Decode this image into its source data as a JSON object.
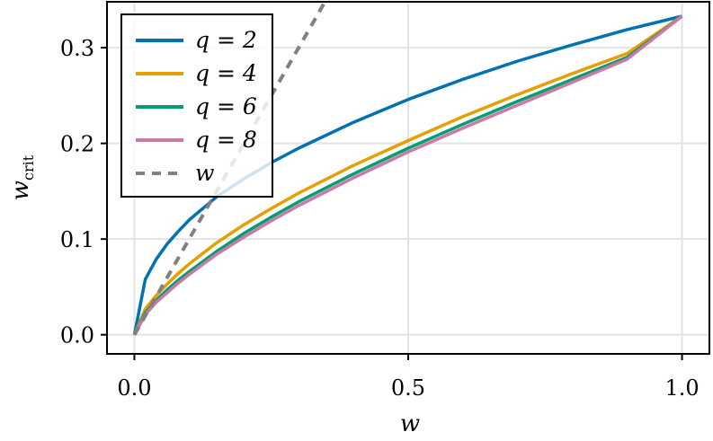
{
  "chart_data": {
    "type": "line",
    "title": "",
    "xlabel": "w",
    "ylabel_main": "w",
    "ylabel_sub": "crit",
    "xlim": [
      -0.05,
      1.05
    ],
    "ylim": [
      -0.02,
      0.348
    ],
    "xticks": [
      0.0,
      0.5,
      1.0
    ],
    "xtick_labels": [
      "0.0",
      "0.5",
      "1.0"
    ],
    "yticks": [
      0.0,
      0.1,
      0.2,
      0.3
    ],
    "ytick_labels": [
      "0.0",
      "0.1",
      "0.2",
      "0.3"
    ],
    "grid": true,
    "legend_position": "top-left",
    "series": [
      {
        "name": "q = 2",
        "color": "#0072B2",
        "dash": "solid",
        "x": [
          0,
          0.02,
          0.04,
          0.06,
          0.08,
          0.1,
          0.15,
          0.2,
          0.25,
          0.3,
          0.4,
          0.5,
          0.6,
          0.7,
          0.8,
          0.9,
          1.0
        ],
        "y": [
          0,
          0.058,
          0.079,
          0.095,
          0.108,
          0.12,
          0.144,
          0.163,
          0.18,
          0.195,
          0.222,
          0.246,
          0.267,
          0.286,
          0.303,
          0.319,
          0.333
        ]
      },
      {
        "name": "q = 4",
        "color": "#E69F00",
        "dash": "solid",
        "x": [
          0,
          0.02,
          0.04,
          0.06,
          0.08,
          0.1,
          0.15,
          0.2,
          0.25,
          0.3,
          0.4,
          0.5,
          0.6,
          0.7,
          0.8,
          0.9,
          1.0
        ],
        "y": [
          0,
          0.027,
          0.041,
          0.053,
          0.064,
          0.074,
          0.096,
          0.115,
          0.132,
          0.148,
          0.177,
          0.203,
          0.228,
          0.251,
          0.273,
          0.294,
          0.333
        ]
      },
      {
        "name": "q = 6",
        "color": "#009E73",
        "dash": "solid",
        "x": [
          0,
          0.02,
          0.04,
          0.06,
          0.08,
          0.1,
          0.15,
          0.2,
          0.25,
          0.3,
          0.4,
          0.5,
          0.6,
          0.7,
          0.8,
          0.9,
          1.0
        ],
        "y": [
          0,
          0.023,
          0.036,
          0.047,
          0.057,
          0.066,
          0.087,
          0.106,
          0.123,
          0.139,
          0.168,
          0.195,
          0.22,
          0.244,
          0.267,
          0.29,
          0.333
        ]
      },
      {
        "name": "q = 8",
        "color": "#CC79A7",
        "dash": "solid",
        "x": [
          0,
          0.02,
          0.04,
          0.06,
          0.08,
          0.1,
          0.15,
          0.2,
          0.25,
          0.3,
          0.4,
          0.5,
          0.6,
          0.7,
          0.8,
          0.9,
          1.0
        ],
        "y": [
          0,
          0.021,
          0.034,
          0.044,
          0.054,
          0.063,
          0.084,
          0.102,
          0.119,
          0.135,
          0.164,
          0.191,
          0.216,
          0.24,
          0.264,
          0.288,
          0.333
        ]
      },
      {
        "name": "w",
        "color": "#808080",
        "dash": "dashed",
        "x": [
          0,
          0.35
        ],
        "y": [
          0,
          0.35
        ]
      }
    ]
  }
}
